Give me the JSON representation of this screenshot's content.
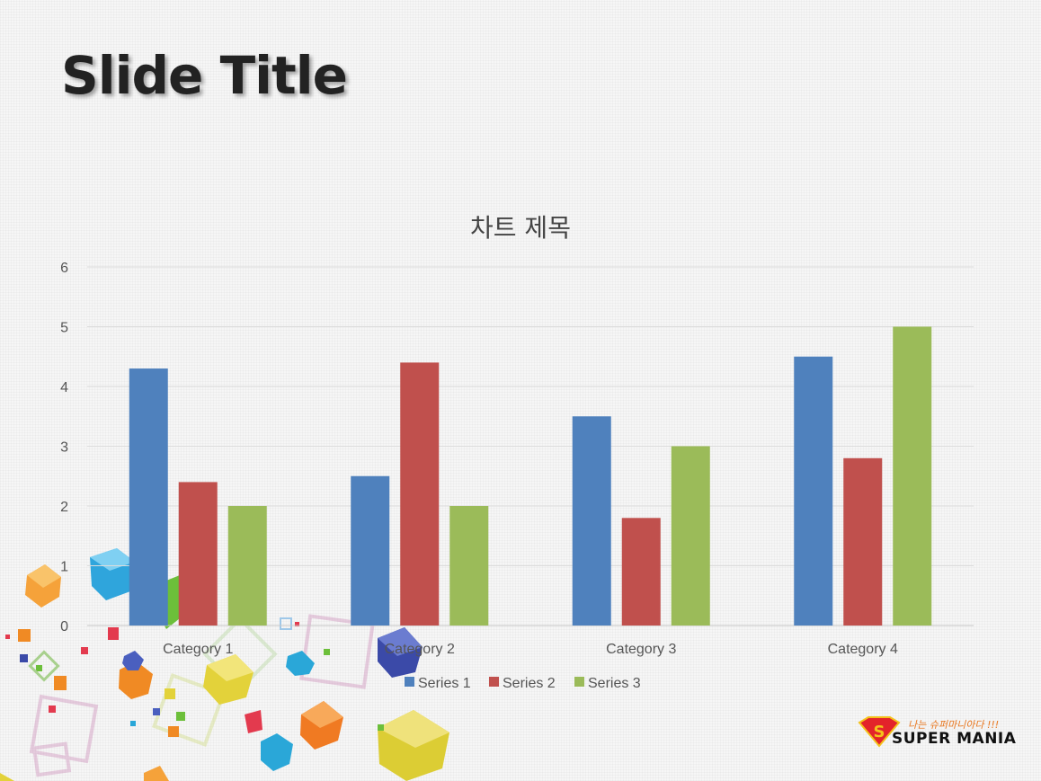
{
  "slide": {
    "title": "Slide Title"
  },
  "chart_data": {
    "type": "bar",
    "title": "차트 제목",
    "categories": [
      "Category 1",
      "Category 2",
      "Category 3",
      "Category 4"
    ],
    "series": [
      {
        "name": "Series 1",
        "color": "#4F81BD",
        "values": [
          4.3,
          2.5,
          3.5,
          4.5
        ]
      },
      {
        "name": "Series 2",
        "color": "#C0504D",
        "values": [
          2.4,
          4.4,
          1.8,
          2.8
        ]
      },
      {
        "name": "Series 3",
        "color": "#9BBB59",
        "values": [
          2,
          2,
          3,
          5
        ]
      }
    ],
    "ylim": [
      0,
      6
    ],
    "yticks": [
      0,
      1,
      2,
      3,
      4,
      5,
      6
    ],
    "grid": true,
    "legend_position": "bottom"
  },
  "logo": {
    "tagline": "나는 슈퍼마니아다 !!!",
    "text": "SUPER MANIA"
  }
}
